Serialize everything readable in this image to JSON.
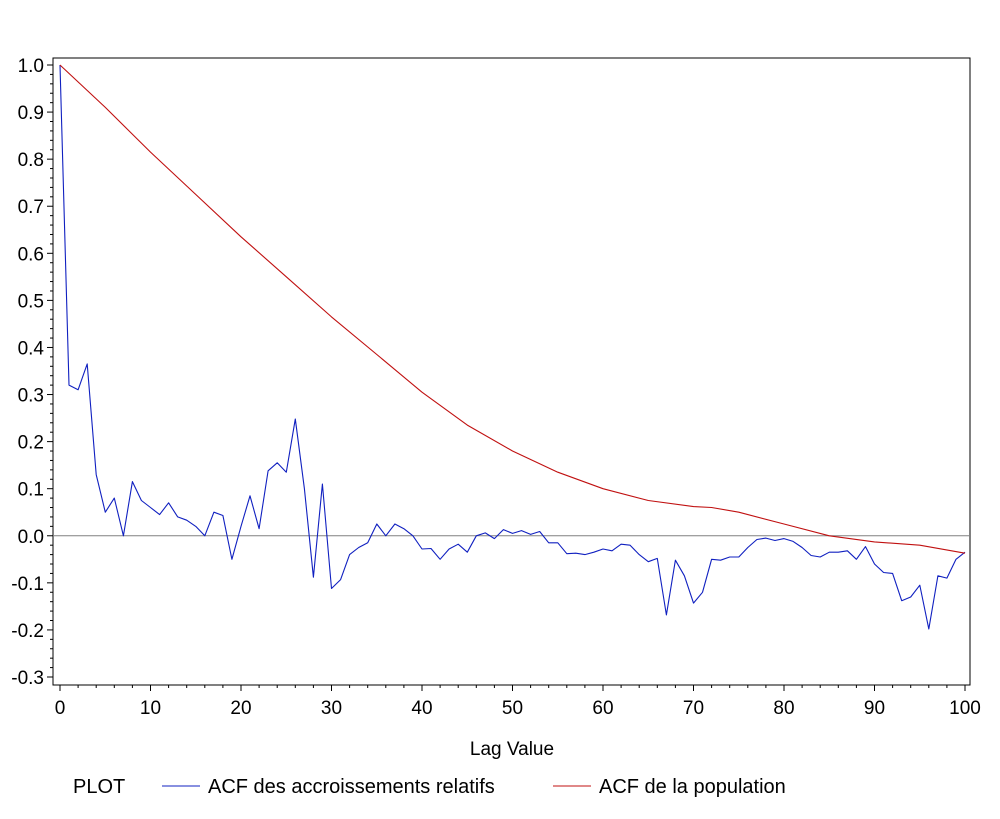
{
  "chart_data": {
    "type": "line",
    "title": "",
    "xlabel": "Lag Value",
    "ylabel": "",
    "xlim": [
      0,
      100
    ],
    "ylim": [
      -0.32,
      1.01
    ],
    "x_ticks": [
      0,
      10,
      20,
      30,
      40,
      50,
      60,
      70,
      80,
      90,
      100
    ],
    "x_tick_labels": [
      "0",
      "10",
      "20",
      "30",
      "40",
      "50",
      "60",
      "70",
      "80",
      "90",
      "100"
    ],
    "y_ticks": [
      -0.3,
      -0.2,
      -0.1,
      0.0,
      0.1,
      0.2,
      0.3,
      0.4,
      0.5,
      0.6,
      0.7,
      0.8,
      0.9,
      1.0
    ],
    "y_tick_labels": [
      "-0.3",
      "-0.2",
      "-0.1",
      "0.0",
      "0.1",
      "0.2",
      "0.3",
      "0.4",
      "0.5",
      "0.6",
      "0.7",
      "0.8",
      "0.9",
      "1.0"
    ],
    "reference_line_y": 0,
    "grid": false,
    "legend_title": "PLOT",
    "legend_position": "bottom",
    "series": [
      {
        "name": "ACF des accroissements relatifs",
        "color": "#1020c0",
        "x": [
          0,
          1,
          2,
          3,
          4,
          5,
          6,
          7,
          8,
          9,
          10,
          11,
          12,
          13,
          14,
          15,
          16,
          17,
          18,
          19,
          20,
          21,
          22,
          23,
          24,
          25,
          26,
          27,
          28,
          29,
          30,
          31,
          32,
          33,
          34,
          35,
          36,
          37,
          38,
          39,
          40,
          41,
          42,
          43,
          44,
          45,
          46,
          47,
          48,
          49,
          50,
          51,
          52,
          53,
          54,
          55,
          56,
          57,
          58,
          59,
          60,
          61,
          62,
          63,
          64,
          65,
          66,
          67,
          68,
          69,
          70,
          71,
          72,
          73,
          74,
          75,
          76,
          77,
          78,
          79,
          80,
          81,
          82,
          83,
          84,
          85,
          86,
          87,
          88,
          89,
          90,
          91,
          92,
          93,
          94,
          95,
          96,
          97,
          98,
          99,
          100
        ],
        "values": [
          1.0,
          0.32,
          0.31,
          0.365,
          0.13,
          0.05,
          0.08,
          0.0,
          0.115,
          0.075,
          0.06,
          0.045,
          0.07,
          0.04,
          0.033,
          0.02,
          0.0,
          0.05,
          0.043,
          -0.05,
          0.02,
          0.085,
          0.015,
          0.138,
          0.155,
          0.135,
          0.248,
          0.1,
          -0.088,
          0.11,
          -0.112,
          -0.093,
          -0.04,
          -0.025,
          -0.015,
          0.025,
          0.0,
          0.025,
          0.015,
          0.0,
          -0.028,
          -0.027,
          -0.05,
          -0.028,
          -0.018,
          -0.035,
          0.0,
          0.006,
          -0.006,
          0.013,
          0.005,
          0.011,
          0.003,
          0.009,
          -0.015,
          -0.015,
          -0.038,
          -0.037,
          -0.04,
          -0.035,
          -0.028,
          -0.032,
          -0.018,
          -0.02,
          -0.04,
          -0.055,
          -0.048,
          -0.168,
          -0.052,
          -0.085,
          -0.143,
          -0.12,
          -0.05,
          -0.052,
          -0.045,
          -0.045,
          -0.025,
          -0.008,
          -0.005,
          -0.01,
          -0.006,
          -0.012,
          -0.025,
          -0.042,
          -0.045,
          -0.035,
          -0.035,
          -0.032,
          -0.05,
          -0.023,
          -0.06,
          -0.078,
          -0.08,
          -0.138,
          -0.13,
          -0.105,
          -0.198,
          -0.085,
          -0.09,
          -0.05,
          -0.035
        ]
      },
      {
        "name": "ACF de la population",
        "color": "#c01010",
        "x": [
          0,
          5,
          10,
          15,
          20,
          25,
          30,
          35,
          40,
          45,
          50,
          55,
          60,
          65,
          70,
          72,
          75,
          80,
          85,
          90,
          95,
          100
        ],
        "values": [
          1.0,
          0.91,
          0.815,
          0.725,
          0.635,
          0.55,
          0.465,
          0.385,
          0.305,
          0.235,
          0.18,
          0.135,
          0.1,
          0.075,
          0.062,
          0.06,
          0.05,
          0.025,
          0.0,
          -0.013,
          -0.02,
          -0.037
        ]
      }
    ]
  },
  "legend": {
    "title": "PLOT",
    "items": [
      {
        "label": "ACF des accroissements relatifs",
        "color": "#1020c0"
      },
      {
        "label": "ACF de la population",
        "color": "#c01010"
      }
    ]
  }
}
